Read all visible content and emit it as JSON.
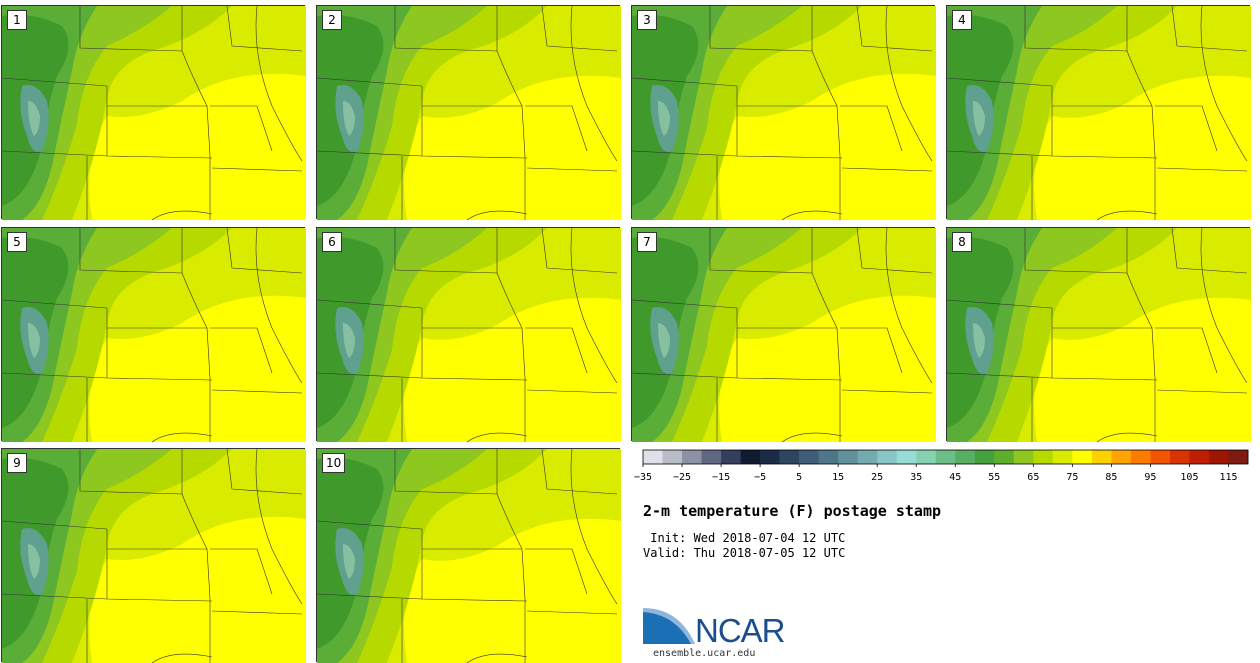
{
  "map": {
    "panels": [
      {
        "label": "1"
      },
      {
        "label": "2"
      },
      {
        "label": "3"
      },
      {
        "label": "4"
      },
      {
        "label": "5"
      },
      {
        "label": "6"
      },
      {
        "label": "7"
      },
      {
        "label": "8"
      },
      {
        "label": "9"
      },
      {
        "label": "10"
      }
    ],
    "colors": {
      "mountain_dark": "#3f9a2b",
      "mountain_mid": "#5aae38",
      "peaks": "#5fa08f",
      "peaks_light": "#87c0a0",
      "plains_green": "#8ec71f",
      "plains_lime": "#b6da00",
      "plains_yellowgreen": "#d9ec00",
      "plains_yellow": "#ffff00",
      "border": "#333333"
    }
  },
  "colorbar": {
    "tick_labels": [
      "−35",
      "−25",
      "−15",
      "−5",
      "5",
      "15",
      "25",
      "35",
      "45",
      "55",
      "65",
      "75",
      "85",
      "95",
      "105",
      "115"
    ],
    "colors": [
      "#dde0e8",
      "#b8bcc8",
      "#8c91a4",
      "#5f6782",
      "#353e5c",
      "#101a33",
      "#1b2b45",
      "#2e4560",
      "#3f5d77",
      "#4f7589",
      "#62909d",
      "#75aab1",
      "#88c6c5",
      "#97dcd6",
      "#86d1b0",
      "#6cbf88",
      "#58ae63",
      "#45a13e",
      "#5fae2b",
      "#8ec71f",
      "#b6da00",
      "#d9ec00",
      "#ffff00",
      "#ffd100",
      "#ffa400",
      "#ff7b00",
      "#f25400",
      "#d93300",
      "#bf1f00",
      "#9e1500",
      "#7e1a0f"
    ],
    "min": -35,
    "step": 5,
    "units": "F"
  },
  "title": "2-m temperature (F) postage stamp",
  "init": " Init: Wed 2018-07-04 12 UTC",
  "valid": "Valid: Thu 2018-07-05 12 UTC",
  "logo": {
    "text": "NCAR",
    "url": "ensemble.ucar.edu",
    "text_color": "#1a4e8c"
  }
}
